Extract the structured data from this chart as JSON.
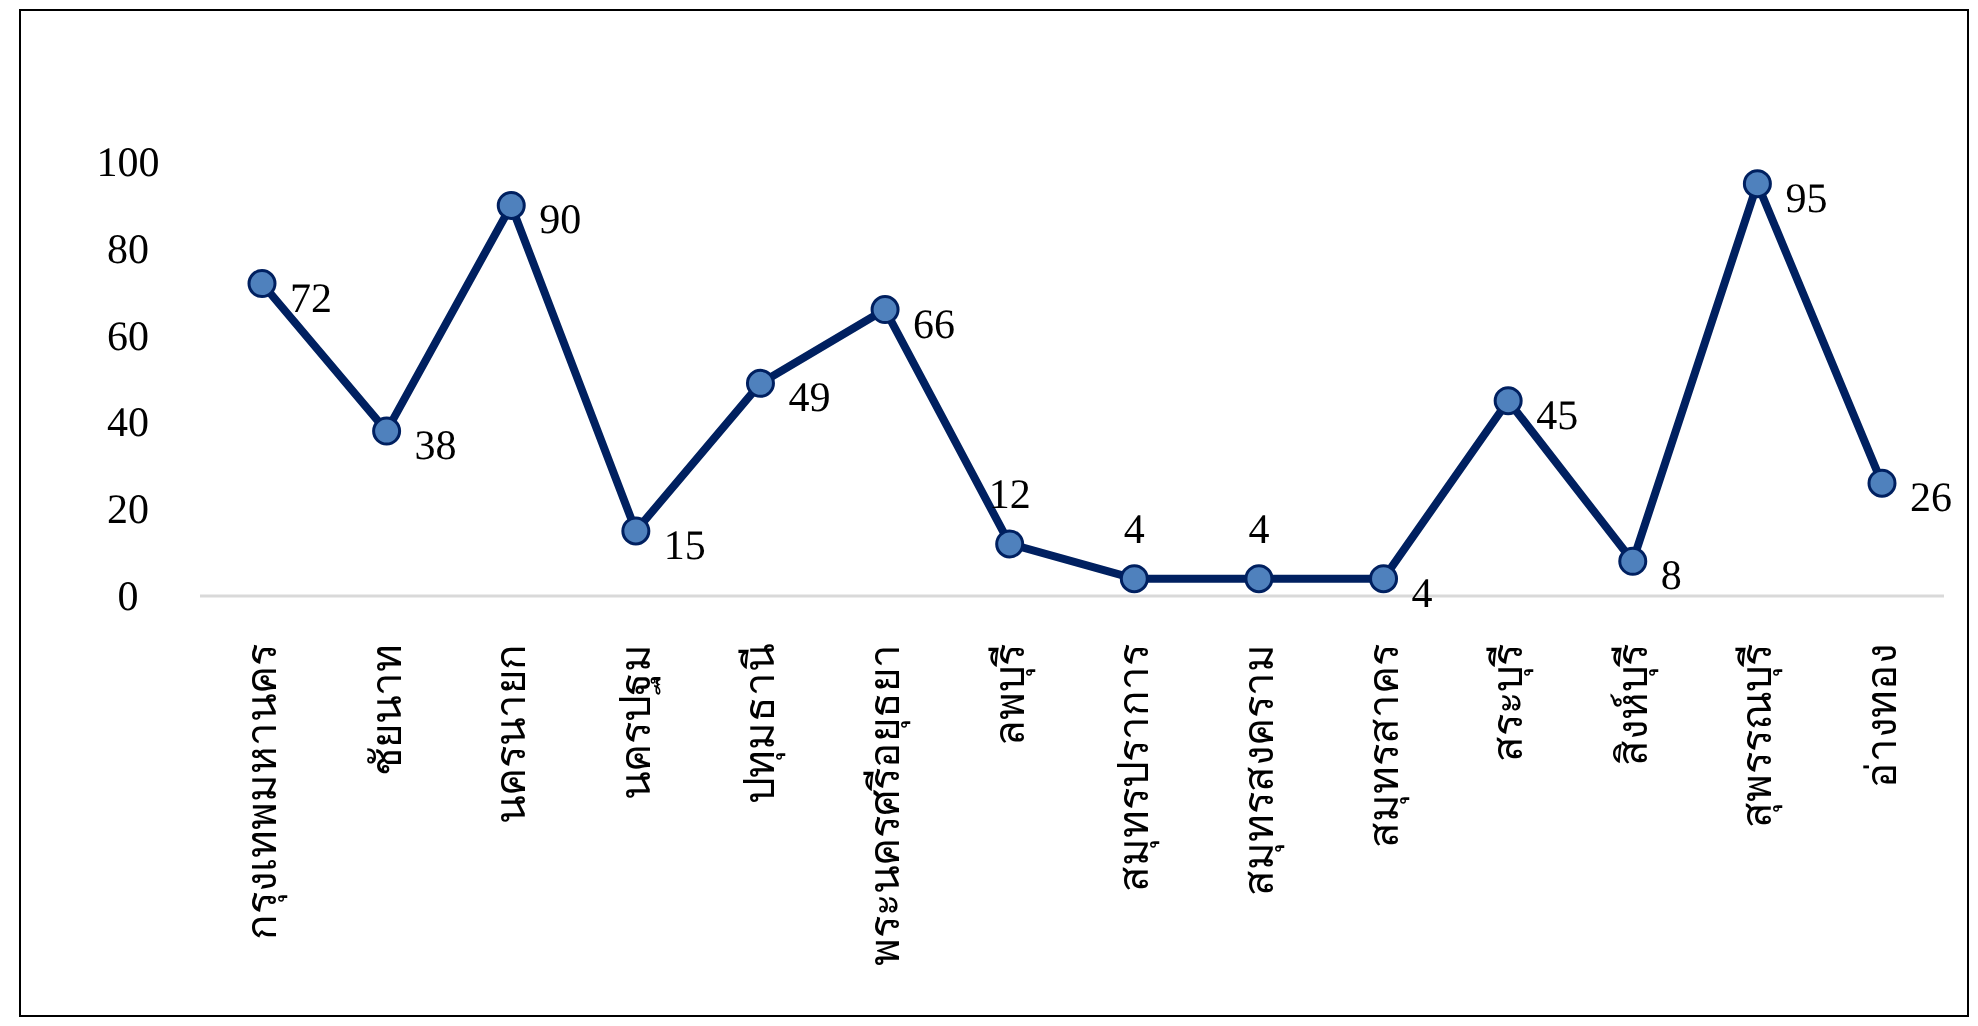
{
  "chart_data": {
    "type": "line",
    "categories": [
      "กรุงเทพมหานคร",
      "ชัยนาท",
      "นครนายก",
      "นครปฐม",
      "ปทุมธานี",
      "พระนครศรีอยุธยา",
      "ลพบุรี",
      "สมุทรปราการ",
      "สมุทรสงคราม",
      "สมุทรสาคร",
      "สระบุรี",
      "สิงห์บุรี",
      "สุพรรณบุรี",
      "อ่างทอง"
    ],
    "series": [
      {
        "color": "#002060",
        "values": [
          72,
          38,
          90,
          15,
          49,
          66,
          12,
          4,
          4,
          4,
          45,
          8,
          95,
          26
        ]
      }
    ],
    "ylim": [
      0,
      100
    ],
    "yticks": [
      0,
      20,
      40,
      60,
      80,
      100
    ],
    "data_labels": true,
    "marker": "circle",
    "line_style": "solid",
    "grid": false
  }
}
